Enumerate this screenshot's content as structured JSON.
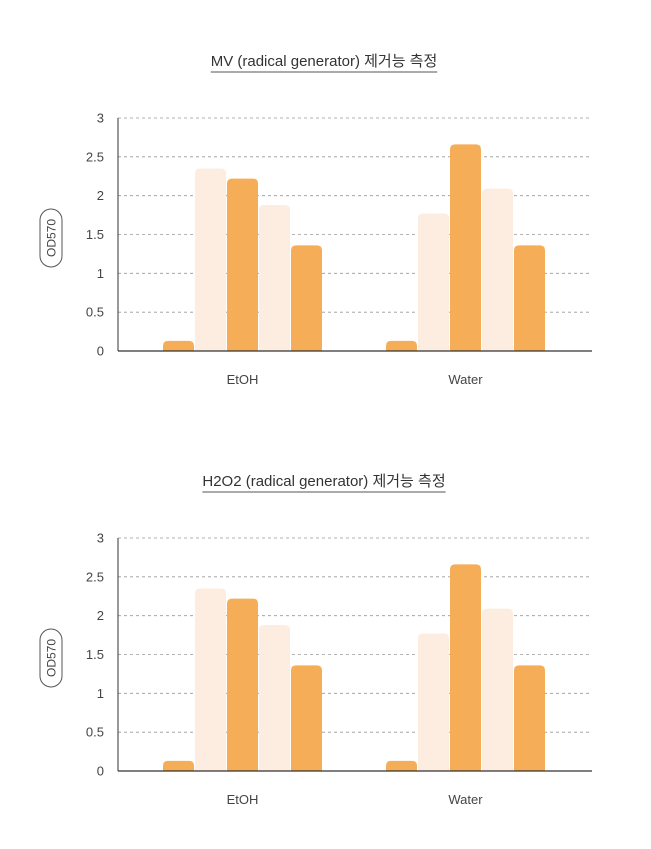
{
  "colors": {
    "dark": "#f5ae57",
    "light": "#fdece0",
    "axis": "#333333",
    "grid": "#999999"
  },
  "chart_data": [
    {
      "type": "bar",
      "title": "MV (radical generator) 제거능 측정",
      "xlabel": "",
      "ylabel": "OD570",
      "ylim": [
        0,
        3
      ],
      "yticks": [
        "0",
        "0.5",
        "1",
        "1.5",
        "2",
        "2.5",
        "3"
      ],
      "grid": "horizontal dashed",
      "categories": [
        "EtOH",
        "Water"
      ],
      "series": [
        {
          "color": "dark",
          "values": [
            0.13,
            0.13
          ]
        },
        {
          "color": "light",
          "values": [
            2.35,
            1.77
          ]
        },
        {
          "color": "dark",
          "values": [
            2.22,
            2.66
          ]
        },
        {
          "color": "light",
          "values": [
            1.88,
            2.09
          ]
        },
        {
          "color": "dark",
          "values": [
            1.36,
            1.36
          ]
        }
      ]
    },
    {
      "type": "bar",
      "title": "H2O2 (radical generator) 제거능 측정",
      "xlabel": "",
      "ylabel": "OD570",
      "ylim": [
        0,
        3
      ],
      "yticks": [
        "0",
        "0.5",
        "1",
        "1.5",
        "2",
        "2.5",
        "3"
      ],
      "grid": "horizontal dashed",
      "categories": [
        "EtOH",
        "Water"
      ],
      "series": [
        {
          "color": "dark",
          "values": [
            0.13,
            0.13
          ]
        },
        {
          "color": "light",
          "values": [
            2.35,
            1.77
          ]
        },
        {
          "color": "dark",
          "values": [
            2.22,
            2.66
          ]
        },
        {
          "color": "light",
          "values": [
            1.88,
            2.09
          ]
        },
        {
          "color": "dark",
          "values": [
            1.36,
            1.36
          ]
        }
      ]
    }
  ]
}
